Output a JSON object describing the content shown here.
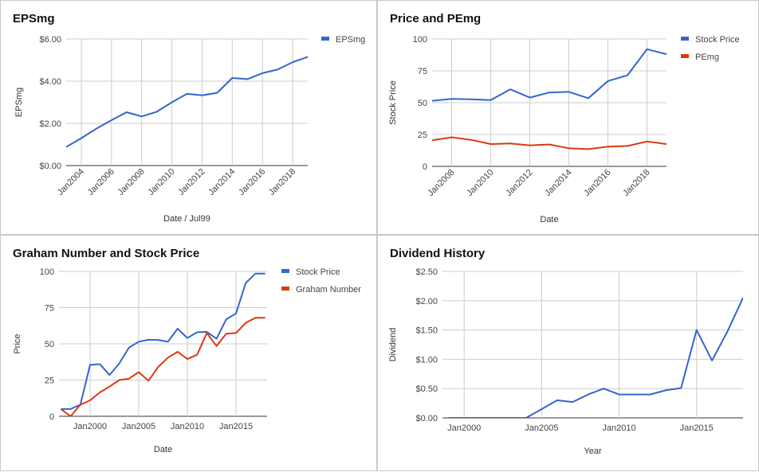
{
  "chart_data": [
    {
      "type": "line",
      "title": "EPSmg",
      "xlabel": "Date / Jul99",
      "ylabel": "EPSmg",
      "x_tick_labels": [
        "Jan2004",
        "Jan2006",
        "Jan2008",
        "Jan2010",
        "Jan2012",
        "Jan2014",
        "Jan2016",
        "Jan2018"
      ],
      "y_tick_labels": [
        "$0.00",
        "$2.00",
        "$4.00",
        "$6.00"
      ],
      "xlim": [
        2003,
        2019
      ],
      "ylim": [
        0,
        6
      ],
      "grid": true,
      "legend_position": "right",
      "series": [
        {
          "name": "EPSmg",
          "color": "#3366cc",
          "x": [
            2003,
            2004,
            2005,
            2006,
            2007,
            2008,
            2009,
            2010,
            2011,
            2012,
            2013,
            2014,
            2015,
            2016,
            2017,
            2018,
            2019
          ],
          "y": [
            0.88,
            1.3,
            1.75,
            2.15,
            2.53,
            2.33,
            2.55,
            3.0,
            3.4,
            3.33,
            3.45,
            4.15,
            4.1,
            4.38,
            4.55,
            4.9,
            5.15
          ]
        }
      ]
    },
    {
      "type": "line",
      "title": "Price and PEmg",
      "xlabel": "Date",
      "ylabel": "Stock Price",
      "x_tick_labels": [
        "Jan2008",
        "Jan2010",
        "Jan2012",
        "Jan2014",
        "Jan2016",
        "Jan2018"
      ],
      "y_tick_labels": [
        "0",
        "25",
        "50",
        "75",
        "100"
      ],
      "xlim": [
        2007,
        2019
      ],
      "ylim": [
        0,
        100
      ],
      "grid": true,
      "legend_position": "right",
      "series": [
        {
          "name": "Stock Price",
          "color": "#3366cc",
          "x": [
            2007,
            2008,
            2009,
            2010,
            2011,
            2012,
            2013,
            2014,
            2015,
            2016,
            2017,
            2018,
            2019
          ],
          "y": [
            51.5,
            53,
            52.7,
            52,
            60.5,
            54,
            58,
            58.5,
            53.5,
            67,
            71.5,
            92,
            88
          ]
        },
        {
          "name": "PEmg",
          "color": "#dc3912",
          "x": [
            2007,
            2008,
            2009,
            2010,
            2011,
            2012,
            2013,
            2014,
            2015,
            2016,
            2017,
            2018,
            2019
          ],
          "y": [
            20.5,
            22.8,
            20.8,
            17.5,
            18,
            16.5,
            17.2,
            14.2,
            13.5,
            15.5,
            16,
            19.5,
            17.5
          ]
        }
      ]
    },
    {
      "type": "line",
      "title": "Graham Number and Stock Price",
      "xlabel": "Date",
      "ylabel": "Price",
      "x_tick_labels": [
        "Jan2000",
        "Jan2005",
        "Jan2010",
        "Jan2015"
      ],
      "y_tick_labels": [
        "0",
        "25",
        "50",
        "75",
        "100"
      ],
      "xlim": [
        1996.8,
        2018.2
      ],
      "ylim": [
        0,
        100
      ],
      "grid": true,
      "legend_position": "right",
      "series": [
        {
          "name": "Stock Price",
          "color": "#3366cc",
          "x": [
            1997,
            1998,
            1999,
            2000,
            2001,
            2002,
            2003,
            2004,
            2005,
            2006,
            2007,
            2008,
            2009,
            2010,
            2011,
            2012,
            2013,
            2014,
            2015,
            2016,
            2017,
            2018
          ],
          "y": [
            5,
            5,
            8,
            35.5,
            36,
            28.5,
            36.5,
            47.5,
            51.5,
            52.8,
            52.7,
            51.5,
            60.5,
            54,
            58,
            58.3,
            53.5,
            67,
            71,
            92,
            98.5,
            98.5
          ]
        },
        {
          "name": "Graham Number",
          "color": "#dc3912",
          "x": [
            1997,
            1998,
            1999,
            2000,
            2001,
            2002,
            2003,
            2004,
            2005,
            2006,
            2007,
            2008,
            2009,
            2010,
            2011,
            2012,
            2013,
            2014,
            2015,
            2016,
            2017,
            2018
          ],
          "y": [
            5,
            0,
            8,
            11,
            16.5,
            20.5,
            25,
            26,
            30.5,
            24.5,
            34,
            40.5,
            44.5,
            39.5,
            42.5,
            57.5,
            48.5,
            57,
            57.5,
            64.5,
            68,
            68
          ]
        }
      ]
    },
    {
      "type": "line",
      "title": "Dividend History",
      "xlabel": "Year",
      "ylabel": "Dividend",
      "x_tick_labels": [
        "Jan2000",
        "Jan2005",
        "Jan2010",
        "Jan2015"
      ],
      "y_tick_labels": [
        "$0.00",
        "$0.50",
        "$1.00",
        "$1.50",
        "$2.00",
        "$2.50"
      ],
      "xlim": [
        1998.6,
        2018
      ],
      "ylim": [
        0,
        2.5
      ],
      "grid": true,
      "legend_position": "none",
      "series": [
        {
          "color": "#3366cc",
          "x": [
            1999,
            2000,
            2001,
            2002,
            2003,
            2004,
            2005,
            2006,
            2007,
            2008,
            2009,
            2010,
            2011,
            2012,
            2013,
            2014,
            2015,
            2016,
            2017,
            2018
          ],
          "y": [
            0,
            0,
            0,
            0,
            0,
            0,
            0.15,
            0.3,
            0.27,
            0.4,
            0.5,
            0.4,
            0.4,
            0.4,
            0.47,
            0.51,
            1.5,
            0.98,
            1.48,
            2.05
          ]
        }
      ]
    }
  ]
}
